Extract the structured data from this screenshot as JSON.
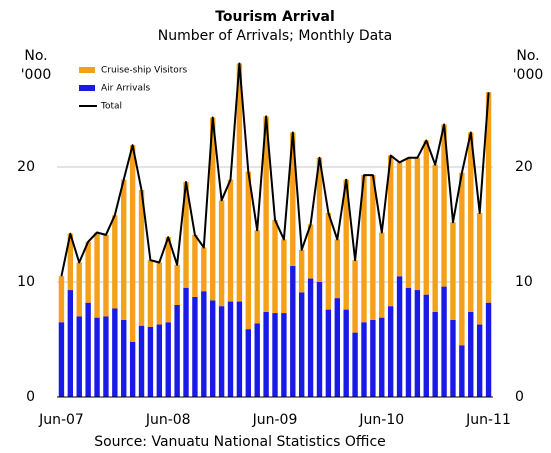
{
  "chart_data": {
    "type": "stacked-bar-line",
    "title": "Tourism Arrival",
    "subtitle": "Number of Arrivals; Monthly Data",
    "ylabel": [
      "No.",
      "'000"
    ],
    "y2label": [
      "No.",
      "'000"
    ],
    "source": "Source: Vanuatu National Statistics Office",
    "categories": [
      "Jun-07",
      null,
      null,
      null,
      null,
      null,
      null,
      null,
      null,
      null,
      null,
      null,
      "Jun-08",
      null,
      null,
      null,
      null,
      null,
      null,
      null,
      null,
      null,
      null,
      null,
      "Jun-09",
      null,
      null,
      null,
      null,
      null,
      null,
      null,
      null,
      null,
      null,
      null,
      "Jun-10",
      null,
      null,
      null,
      null,
      null,
      null,
      null,
      null,
      null,
      null,
      null,
      "Jun-11"
    ],
    "series": [
      {
        "name": "Cruise-ship Visitors",
        "color": "#f5a01a",
        "kind": "bar",
        "values": [
          4.0,
          4.9,
          4.7,
          5.3,
          7.4,
          7.1,
          8.1,
          12.2,
          17.1,
          11.8,
          5.8,
          5.4,
          7.4,
          3.5,
          9.2,
          5.4,
          3.8,
          15.9,
          9.2,
          10.6,
          20.7,
          13.7,
          8.1,
          17.0,
          8.1,
          6.4,
          11.6,
          3.7,
          4.7,
          10.8,
          8.4,
          5.1,
          11.3,
          6.3,
          12.8,
          12.6,
          7.4,
          13.1,
          9.9,
          11.3,
          11.5,
          13.4,
          12.8,
          14.1,
          8.5,
          15.0,
          15.6,
          9.7,
          18.3
        ]
      },
      {
        "name": "Air Arrivals",
        "color": "#1a1ae6",
        "kind": "bar",
        "values": [
          6.5,
          9.3,
          7.0,
          8.2,
          6.9,
          7.0,
          7.7,
          6.7,
          4.8,
          6.2,
          6.1,
          6.3,
          6.5,
          8.0,
          9.5,
          8.7,
          9.2,
          8.4,
          7.9,
          8.3,
          8.3,
          5.9,
          6.4,
          7.4,
          7.3,
          7.3,
          11.4,
          9.1,
          10.3,
          10.0,
          7.6,
          8.6,
          7.6,
          5.6,
          6.5,
          6.7,
          6.9,
          7.9,
          10.5,
          9.5,
          9.3,
          8.9,
          7.4,
          9.6,
          6.7,
          4.5,
          7.4,
          6.3,
          8.2
        ]
      },
      {
        "name": "Total",
        "color": "#000000",
        "kind": "line",
        "values": [
          10.5,
          14.2,
          11.7,
          13.5,
          14.3,
          14.1,
          15.8,
          18.9,
          21.9,
          18.0,
          11.9,
          11.7,
          13.9,
          11.5,
          18.7,
          14.1,
          13.0,
          24.3,
          17.1,
          18.9,
          29.0,
          19.6,
          14.5,
          24.4,
          15.4,
          13.7,
          23.0,
          12.8,
          15.0,
          20.8,
          16.0,
          13.7,
          18.9,
          11.9,
          19.3,
          19.3,
          14.3,
          21.0,
          20.4,
          20.8,
          20.8,
          22.3,
          20.2,
          23.7,
          15.2,
          19.5,
          23.0,
          16.0,
          26.5
        ]
      }
    ],
    "stack_order": [
      1,
      0
    ],
    "ylim": [
      0,
      30
    ],
    "yticks": [
      0,
      10,
      20
    ],
    "y2lim": [
      0,
      30
    ],
    "y2ticks": [
      0,
      10,
      20
    ],
    "grid": true,
    "legend": "upper left"
  }
}
